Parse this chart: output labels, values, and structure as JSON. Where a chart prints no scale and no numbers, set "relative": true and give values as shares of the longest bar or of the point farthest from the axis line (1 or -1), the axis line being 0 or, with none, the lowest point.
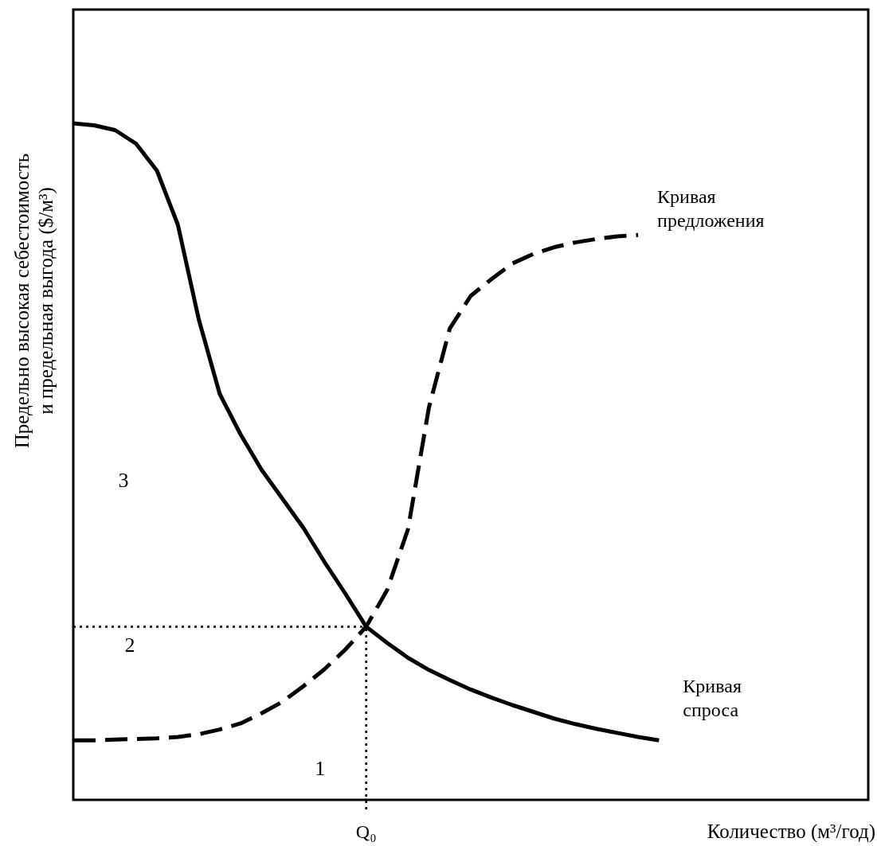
{
  "chart_data": {
    "type": "line",
    "relative": true,
    "xlabel": "Количество (м³/год)",
    "ylabel": "Предельно высокая себестоимость и предельная выгода ($/м³)",
    "marker": "none",
    "categories": [
      null,
      null,
      null,
      null,
      null,
      null,
      null,
      null,
      null,
      null,
      null,
      null,
      null,
      null,
      null,
      null,
      null,
      null,
      null,
      null,
      null,
      null,
      null,
      null,
      null,
      null,
      null,
      null,
      null,
      null,
      null,
      null,
      null,
      null,
      null,
      null,
      null,
      null,
      null
    ],
    "series": [
      {
        "name": "Кривая спроса",
        "color": "#000000",
        "line_style": "solid",
        "values": [
          1,
          0.997,
          0.99,
          0.97,
          0.93,
          0.85,
          0.71,
          0.6,
          0.54,
          0.488,
          0.445,
          0.402,
          0.352,
          0.305,
          0.256,
          0.232,
          0.21,
          0.192,
          0.177,
          0.163,
          0.151,
          0.14,
          0.13,
          0.12,
          0.112,
          0.105,
          0.099,
          0.093,
          0.088,
          null,
          null,
          null,
          null,
          null,
          null,
          null,
          null,
          null,
          null
        ]
      },
      {
        "name": "Кривая предложения",
        "color": "#000000",
        "line_style": "dashed",
        "values": [
          0.088,
          0.088,
          0.089,
          0.09,
          0.091,
          0.093,
          0.097,
          0.104,
          0.113,
          0.128,
          0.145,
          0.168,
          0.193,
          0.222,
          0.256,
          0.31,
          0.4,
          0.58,
          0.697,
          0.745,
          0.77,
          0.793,
          0.807,
          0.817,
          0.824,
          0.829,
          0.833,
          0.835,
          null,
          null,
          null,
          null,
          null,
          null,
          null,
          null,
          null,
          null,
          null
        ]
      }
    ],
    "ref_lines": [
      {
        "axis": "y",
        "value": 0.256,
        "line_style": "dotted"
      }
    ],
    "annotations": [
      "3",
      "2",
      "1",
      "Q₀"
    ]
  }
}
